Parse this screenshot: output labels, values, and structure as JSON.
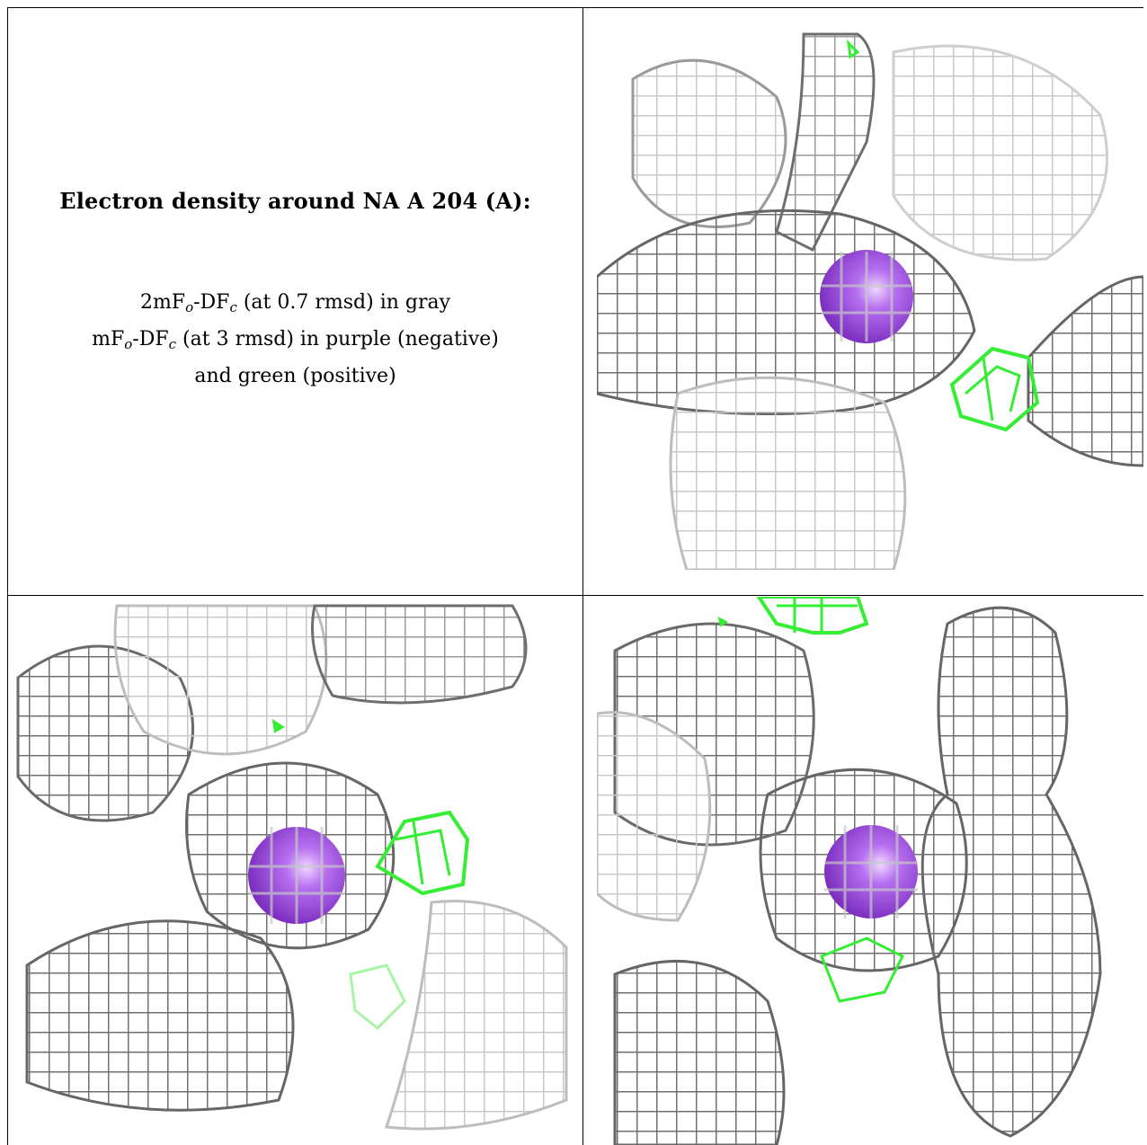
{
  "caption": {
    "title": "Electron density around NA A 204 (A):",
    "line1": {
      "a": "2mF",
      "a_sub": "o",
      "b": "-DF",
      "b_sub": "c",
      "rest": " (at 0.7 rmsd) in gray"
    },
    "line2": {
      "a": "mF",
      "a_sub": "o",
      "b": "-DF",
      "b_sub": "c",
      "rest": " (at 3 rmsd) in purple (negative)"
    },
    "line3": "and green (positive)"
  },
  "colors": {
    "mesh_dark": "#6e6e6e",
    "mesh_light": "#cfcfcf",
    "positive": "#33ee33",
    "atom": "#9a45d6",
    "atom_highlight": "#e6c8ff"
  },
  "panels": [
    {
      "name": "view-1",
      "atom": "sodium-ion"
    },
    {
      "name": "view-2",
      "atom": "sodium-ion"
    },
    {
      "name": "view-3",
      "atom": "sodium-ion"
    }
  ]
}
